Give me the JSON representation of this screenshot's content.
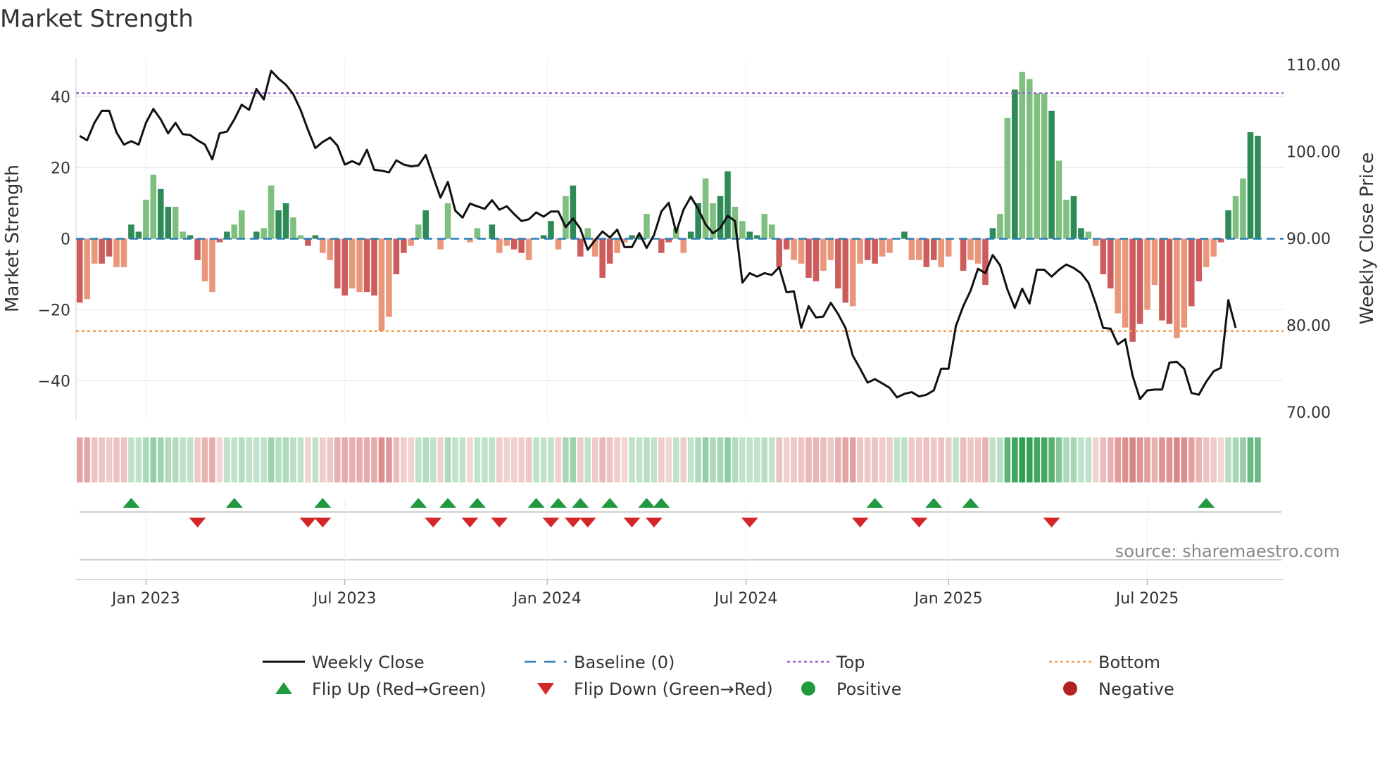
{
  "title": "Market Strength",
  "chart_data": {
    "type": "bar",
    "title": "Market Strength",
    "ylabel_left": "Market Strength",
    "ylabel_right": "Weekly Close Price",
    "ylim_left": [
      -51,
      51
    ],
    "ylim_right": [
      70,
      110
    ],
    "yticks_left": [
      -40,
      -20,
      0,
      20,
      40
    ],
    "yticks_left_labels": [
      "−40",
      "−20",
      "0",
      "20",
      "40"
    ],
    "yticks_right": [
      70,
      80,
      90,
      100,
      110
    ],
    "yticks_right_labels": [
      "70.00",
      "80.00",
      "90.00",
      "100.00",
      "110.00"
    ],
    "xlim": [
      0,
      164
    ],
    "xticks": [
      {
        "label": "Jan 2023",
        "x": 9.5
      },
      {
        "label": "Jul 2023",
        "x": 36.5
      },
      {
        "label": "Jan 2024",
        "x": 64
      },
      {
        "label": "Jul 2024",
        "x": 91
      },
      {
        "label": "Jan 2025",
        "x": 118.5
      },
      {
        "label": "Jul 2025",
        "x": 145.5
      }
    ],
    "top_line": 41,
    "bottom_line": -26,
    "baseline": 0,
    "strength": [
      -18,
      -17,
      -7,
      -7,
      -5,
      -8,
      -8,
      4,
      2,
      11,
      18,
      14,
      9,
      9,
      2,
      1,
      -6,
      -12,
      -15,
      -1,
      2,
      4,
      8,
      0,
      2,
      3,
      15,
      8,
      10,
      6,
      1,
      -2,
      1,
      -4,
      -6,
      -14,
      -16,
      -14,
      -15,
      -15,
      -16,
      -26,
      -22,
      -10,
      -4,
      -2,
      4,
      8,
      0,
      -3,
      10,
      0,
      0,
      -1,
      3,
      0,
      4,
      -4,
      -2,
      -3,
      -4,
      -6,
      0,
      1,
      5,
      -3,
      12,
      15,
      -5,
      3,
      -5,
      -11,
      -7,
      -4,
      -1,
      1,
      1,
      7,
      0,
      -4,
      -1,
      3,
      -4,
      2,
      10,
      17,
      10,
      12,
      19,
      9,
      5,
      2,
      1,
      7,
      4,
      -8,
      -3,
      -6,
      -7,
      -11,
      -12,
      -9,
      -6,
      -14,
      -18,
      -19,
      -7,
      -6,
      -7,
      -5,
      -4,
      0,
      2,
      -6,
      -6,
      -8,
      -6,
      -8,
      -5,
      0,
      -9,
      -6,
      -7,
      -13,
      3,
      7,
      34,
      42,
      47,
      45,
      41,
      41,
      36,
      22,
      11,
      12,
      3,
      2,
      -2,
      -10,
      -14,
      -21,
      -25,
      -29,
      -24,
      -20,
      -13,
      -23,
      -24,
      -28,
      -25,
      -19,
      -12,
      -8,
      -5,
      -1,
      8,
      12,
      17,
      30,
      29
    ],
    "weekly_close": [
      101.8,
      101.3,
      103.3,
      104.7,
      104.7,
      102.2,
      100.8,
      101.2,
      100.8,
      103.3,
      104.9,
      103.7,
      102.1,
      103.3,
      102.0,
      101.9,
      101.3,
      100.8,
      99.1,
      102.1,
      102.3,
      103.7,
      105.4,
      104.8,
      107.2,
      106.0,
      109.3,
      108.4,
      107.7,
      106.6,
      104.8,
      102.5,
      100.4,
      101.1,
      101.6,
      100.7,
      98.5,
      98.9,
      98.5,
      100.2,
      97.9,
      97.8,
      97.6,
      99.0,
      98.5,
      98.3,
      98.4,
      99.6,
      97.1,
      94.7,
      96.5,
      93.2,
      92.4,
      94.0,
      93.7,
      93.4,
      94.4,
      93.3,
      93.7,
      92.8,
      92.0,
      92.2,
      93.0,
      92.5,
      93.1,
      93.1,
      91.3,
      92.3,
      91.1,
      88.7,
      89.8,
      90.8,
      90.1,
      91.0,
      89.0,
      89.0,
      90.6,
      88.9,
      90.4,
      93.1,
      94.1,
      90.7,
      93.3,
      94.8,
      93.4,
      91.6,
      90.6,
      91.2,
      92.6,
      92.0,
      84.9,
      86.0,
      85.6,
      86.0,
      85.8,
      86.7,
      83.8,
      83.9,
      79.7,
      82.2,
      80.9,
      81.0,
      82.6,
      81.3,
      79.7,
      76.5,
      75.0,
      73.4,
      73.8,
      73.3,
      72.8,
      71.7,
      72.1,
      72.3,
      71.8,
      72.0,
      72.5,
      75.0,
      75.0,
      79.9,
      82.2,
      84.0,
      86.5,
      86.0,
      88.1,
      86.9,
      84.1,
      82.0,
      84.2,
      82.5,
      86.4,
      86.4,
      85.6,
      86.4,
      87.0,
      86.6,
      86.0,
      84.9,
      82.5,
      79.7,
      79.6,
      77.8,
      78.4,
      74.2,
      71.5,
      72.5,
      72.6,
      72.6,
      75.7,
      75.8,
      75.0,
      72.2,
      72.0,
      73.5,
      74.7,
      75.1,
      82.9,
      79.7
    ],
    "flip_up_bars": [
      7,
      21,
      33,
      46,
      50,
      54,
      62,
      65,
      68,
      72,
      77,
      79,
      108,
      116,
      121,
      153
    ],
    "flip_down_bars": [
      16,
      31,
      33,
      48,
      53,
      57,
      64,
      67,
      69,
      75,
      78,
      91,
      106,
      114,
      132
    ],
    "legend": [
      {
        "key": "weekly_close",
        "label": "Weekly Close",
        "symbol": "line",
        "color": "#111111"
      },
      {
        "key": "baseline",
        "label": "Baseline (0)",
        "symbol": "dash",
        "color": "#2a7fb8"
      },
      {
        "key": "top",
        "label": "Top",
        "symbol": "dot",
        "color": "#9966cc"
      },
      {
        "key": "bottom",
        "label": "Bottom",
        "symbol": "dot",
        "color": "#f0a050"
      },
      {
        "key": "flip_up",
        "label": "Flip Up (Red→Green)",
        "symbol": "triangle-up",
        "color": "#1f9a3f"
      },
      {
        "key": "flip_down",
        "label": "Flip Down (Green→Red)",
        "symbol": "triangle-down",
        "color": "#d62728"
      },
      {
        "key": "positive",
        "label": "Positive",
        "symbol": "circle",
        "color": "#1f9a3f"
      },
      {
        "key": "negative",
        "label": "Negative",
        "symbol": "circle",
        "color": "#b22222"
      }
    ],
    "legend_position": "bottom-center",
    "source": "source: sharemaestro.com"
  },
  "colors": {
    "pos_strong": "#2e8b57",
    "pos_light": "#7fbf7f",
    "neg_strong": "#cd5c5c",
    "neg_light": "#e9967a",
    "price_line": "#111111",
    "baseline": "#2a7fb8",
    "top": "#9966cc",
    "bottom": "#f0a050",
    "flip_up": "#1f9a3f",
    "flip_down": "#d62728",
    "grid": "#e6e6e6",
    "axis": "#cccccc"
  }
}
